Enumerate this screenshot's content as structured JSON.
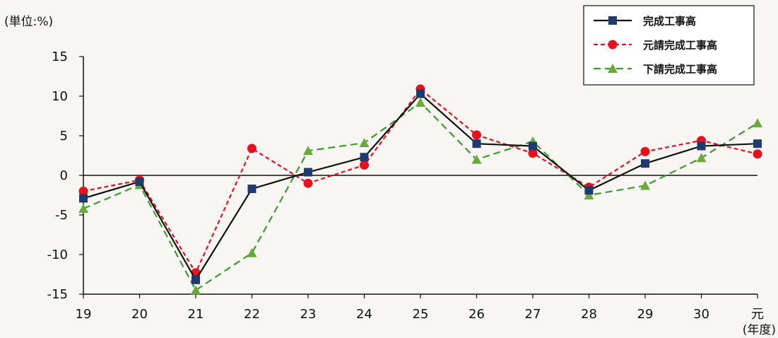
{
  "chart_data": {
    "type": "line",
    "unit_label": "(単位:%)",
    "xunit_label": "(年度)",
    "categories": [
      "19",
      "20",
      "21",
      "22",
      "23",
      "24",
      "25",
      "26",
      "27",
      "28",
      "29",
      "30",
      "元"
    ],
    "ylim": [
      -15,
      15
    ],
    "yticks": [
      15,
      10,
      5,
      0,
      -5,
      -10,
      -15
    ],
    "grid": false,
    "legend_position": "top-right",
    "series": [
      {
        "name": "完成工事高",
        "color": "#1f3a6e",
        "line_color": "#111111",
        "dash": "solid",
        "marker": "square",
        "values": [
          -2.9,
          -0.8,
          -13.2,
          -1.7,
          0.4,
          2.3,
          10.3,
          4.0,
          3.7,
          -1.9,
          1.5,
          3.7,
          4.0
        ]
      },
      {
        "name": "元請完成工事高",
        "color": "#e8101e",
        "line_color": "#e8101e",
        "dash": "short-dash",
        "marker": "circle",
        "values": [
          -2.0,
          -0.6,
          -12.3,
          3.4,
          -1.0,
          1.3,
          10.9,
          5.1,
          2.8,
          -1.5,
          3.0,
          4.4,
          2.7
        ]
      },
      {
        "name": "下請完成工事高",
        "color": "#6aaa3a",
        "line_color": "#3f9a2e",
        "dash": "long-dash",
        "marker": "triangle",
        "values": [
          -4.2,
          -1.2,
          -14.5,
          -9.8,
          3.1,
          4.1,
          9.2,
          2.0,
          4.3,
          -2.5,
          -1.3,
          2.2,
          6.6
        ]
      }
    ]
  }
}
